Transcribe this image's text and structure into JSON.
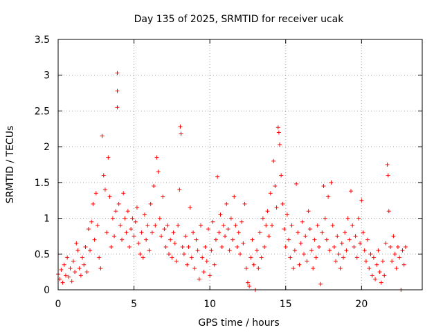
{
  "chart_data": {
    "type": "scatter",
    "title": "Day 135 of 2025, SRMTID for receiver ucak",
    "xlabel": "GPS time / hours",
    "ylabel": "SRMTID / TECUs",
    "xlim": [
      0,
      24
    ],
    "ylim": [
      0,
      3.5
    ],
    "xticks": [
      0,
      5,
      10,
      15,
      20
    ],
    "xtick_labels": [
      "0",
      "5",
      "10",
      "15",
      "20"
    ],
    "yticks": [
      0,
      0.5,
      1,
      1.5,
      2,
      2.5,
      3,
      3.5
    ],
    "ytick_labels": [
      "0",
      "0.5",
      "1",
      "1.5",
      "2",
      "2.5",
      "3",
      "3.5"
    ],
    "grid": true,
    "marker": "plus",
    "color": "#ff0000",
    "series": [
      {
        "name": "SRMTID",
        "points": [
          [
            0.0,
            0.22
          ],
          [
            0.1,
            0.15
          ],
          [
            0.2,
            0.28
          ],
          [
            0.3,
            0.1
          ],
          [
            0.4,
            0.35
          ],
          [
            0.5,
            0.2
          ],
          [
            0.6,
            0.45
          ],
          [
            0.7,
            0.18
          ],
          [
            0.8,
            0.3
          ],
          [
            0.9,
            0.12
          ],
          [
            1.0,
            0.4
          ],
          [
            1.1,
            0.25
          ],
          [
            1.2,
            0.65
          ],
          [
            1.3,
            0.55
          ],
          [
            1.4,
            0.3
          ],
          [
            1.5,
            0.2
          ],
          [
            1.6,
            0.45
          ],
          [
            1.7,
            0.35
          ],
          [
            1.8,
            0.6
          ],
          [
            1.9,
            0.25
          ],
          [
            2.0,
            0.85
          ],
          [
            2.1,
            0.55
          ],
          [
            2.2,
            0.95
          ],
          [
            2.3,
            1.2
          ],
          [
            2.4,
            0.7
          ],
          [
            2.5,
            1.35
          ],
          [
            2.6,
            0.9
          ],
          [
            2.7,
            0.45
          ],
          [
            2.8,
            0.3
          ],
          [
            2.9,
            2.15
          ],
          [
            3.0,
            1.6
          ],
          [
            3.1,
            1.4
          ],
          [
            3.2,
            0.8
          ],
          [
            3.3,
            1.85
          ],
          [
            3.4,
            1.3
          ],
          [
            3.5,
            0.6
          ],
          [
            3.6,
            1.0
          ],
          [
            3.7,
            0.75
          ],
          [
            3.8,
            1.1
          ],
          [
            3.9,
            3.03
          ],
          [
            3.9,
            2.78
          ],
          [
            3.9,
            2.55
          ],
          [
            4.0,
            1.2
          ],
          [
            4.1,
            0.9
          ],
          [
            4.2,
            0.7
          ],
          [
            4.3,
            1.35
          ],
          [
            4.4,
            1.0
          ],
          [
            4.5,
            0.8
          ],
          [
            4.6,
            1.1
          ],
          [
            4.7,
            0.6
          ],
          [
            4.8,
            0.85
          ],
          [
            4.9,
            1.0
          ],
          [
            5.0,
            0.75
          ],
          [
            5.1,
            0.95
          ],
          [
            5.2,
            1.15
          ],
          [
            5.3,
            0.65
          ],
          [
            5.4,
            0.5
          ],
          [
            5.5,
            0.8
          ],
          [
            5.6,
            0.45
          ],
          [
            5.7,
            1.05
          ],
          [
            5.8,
            0.7
          ],
          [
            5.9,
            0.9
          ],
          [
            6.0,
            0.55
          ],
          [
            6.1,
            1.2
          ],
          [
            6.2,
            0.8
          ],
          [
            6.3,
            1.45
          ],
          [
            6.4,
            0.9
          ],
          [
            6.5,
            1.85
          ],
          [
            6.6,
            1.65
          ],
          [
            6.7,
            1.0
          ],
          [
            6.8,
            0.75
          ],
          [
            6.9,
            1.3
          ],
          [
            7.0,
            0.85
          ],
          [
            7.1,
            0.6
          ],
          [
            7.2,
            0.9
          ],
          [
            7.3,
            0.5
          ],
          [
            7.4,
            0.7
          ],
          [
            7.5,
            0.45
          ],
          [
            7.6,
            0.8
          ],
          [
            7.7,
            0.65
          ],
          [
            7.8,
            0.4
          ],
          [
            7.9,
            0.9
          ],
          [
            8.0,
            1.4
          ],
          [
            8.05,
            2.28
          ],
          [
            8.1,
            2.18
          ],
          [
            8.2,
            0.6
          ],
          [
            8.3,
            0.5
          ],
          [
            8.4,
            0.75
          ],
          [
            8.5,
            0.35
          ],
          [
            8.6,
            0.6
          ],
          [
            8.7,
            1.15
          ],
          [
            8.8,
            0.45
          ],
          [
            8.9,
            0.8
          ],
          [
            9.0,
            0.3
          ],
          [
            9.1,
            0.7
          ],
          [
            9.2,
            0.55
          ],
          [
            9.3,
            0.15
          ],
          [
            9.4,
            0.9
          ],
          [
            9.5,
            0.45
          ],
          [
            9.6,
            0.25
          ],
          [
            9.7,
            0.6
          ],
          [
            9.8,
            0.4
          ],
          [
            9.9,
            0.85
          ],
          [
            10.0,
            0.2
          ],
          [
            10.1,
            0.55
          ],
          [
            10.2,
            0.95
          ],
          [
            10.3,
            0.35
          ],
          [
            10.4,
            0.7
          ],
          [
            10.5,
            1.58
          ],
          [
            10.6,
            0.8
          ],
          [
            10.7,
            1.05
          ],
          [
            10.8,
            0.6
          ],
          [
            10.9,
            0.9
          ],
          [
            11.0,
            0.75
          ],
          [
            11.1,
            1.2
          ],
          [
            11.2,
            0.85
          ],
          [
            11.3,
            0.55
          ],
          [
            11.4,
            1.0
          ],
          [
            11.5,
            0.7
          ],
          [
            11.6,
            1.3
          ],
          [
            11.7,
            0.9
          ],
          [
            11.8,
            0.6
          ],
          [
            11.9,
            0.8
          ],
          [
            12.0,
            0.5
          ],
          [
            12.1,
            0.95
          ],
          [
            12.2,
            0.65
          ],
          [
            12.3,
            1.2
          ],
          [
            12.4,
            0.3
          ],
          [
            12.5,
            0.1
          ],
          [
            12.6,
            0.05
          ],
          [
            12.7,
            0.45
          ],
          [
            12.8,
            0.7
          ],
          [
            12.9,
            0.35
          ],
          [
            13.0,
            0.0
          ],
          [
            13.1,
            0.55
          ],
          [
            13.2,
            0.3
          ],
          [
            13.3,
            0.8
          ],
          [
            13.4,
            0.45
          ],
          [
            13.5,
            1.0
          ],
          [
            13.6,
            0.6
          ],
          [
            13.7,
            0.9
          ],
          [
            13.8,
            1.1
          ],
          [
            13.9,
            0.75
          ],
          [
            14.0,
            1.35
          ],
          [
            14.1,
            0.9
          ],
          [
            14.2,
            1.8
          ],
          [
            14.3,
            1.45
          ],
          [
            14.4,
            1.15
          ],
          [
            14.5,
            2.27
          ],
          [
            14.55,
            2.2
          ],
          [
            14.6,
            2.03
          ],
          [
            14.7,
            1.6
          ],
          [
            14.8,
            1.2
          ],
          [
            14.9,
            0.85
          ],
          [
            15.0,
            0.6
          ],
          [
            15.1,
            1.05
          ],
          [
            15.2,
            0.7
          ],
          [
            15.3,
            0.45
          ],
          [
            15.4,
            0.9
          ],
          [
            15.5,
            0.3
          ],
          [
            15.6,
            0.55
          ],
          [
            15.7,
            1.48
          ],
          [
            15.8,
            0.8
          ],
          [
            15.9,
            0.35
          ],
          [
            16.0,
            0.65
          ],
          [
            16.1,
            0.95
          ],
          [
            16.2,
            0.5
          ],
          [
            16.3,
            0.75
          ],
          [
            16.4,
            0.4
          ],
          [
            16.5,
            1.1
          ],
          [
            16.6,
            0.85
          ],
          [
            16.7,
            0.55
          ],
          [
            16.8,
            0.3
          ],
          [
            16.9,
            0.7
          ],
          [
            17.0,
            0.45
          ],
          [
            17.1,
            0.9
          ],
          [
            17.2,
            0.6
          ],
          [
            17.3,
            0.08
          ],
          [
            17.4,
            0.8
          ],
          [
            17.5,
            1.45
          ],
          [
            17.6,
            1.0
          ],
          [
            17.7,
            0.7
          ],
          [
            17.8,
            1.3
          ],
          [
            17.9,
            0.55
          ],
          [
            18.0,
            1.5
          ],
          [
            18.1,
            0.9
          ],
          [
            18.2,
            0.6
          ],
          [
            18.3,
            0.4
          ],
          [
            18.4,
            0.75
          ],
          [
            18.5,
            0.5
          ],
          [
            18.6,
            0.3
          ],
          [
            18.7,
            0.65
          ],
          [
            18.8,
            0.45
          ],
          [
            18.9,
            0.8
          ],
          [
            19.0,
            0.55
          ],
          [
            19.1,
            1.0
          ],
          [
            19.2,
            0.7
          ],
          [
            19.3,
            1.38
          ],
          [
            19.4,
            0.9
          ],
          [
            19.5,
            0.6
          ],
          [
            19.6,
            0.75
          ],
          [
            19.7,
            0.45
          ],
          [
            19.8,
            1.0
          ],
          [
            19.9,
            0.65
          ],
          [
            20.0,
            1.25
          ],
          [
            20.1,
            0.8
          ],
          [
            20.2,
            0.55
          ],
          [
            20.3,
            0.4
          ],
          [
            20.4,
            0.7
          ],
          [
            20.5,
            0.3
          ],
          [
            20.6,
            0.5
          ],
          [
            20.7,
            0.2
          ],
          [
            20.8,
            0.45
          ],
          [
            20.9,
            0.15
          ],
          [
            21.0,
            0.35
          ],
          [
            21.1,
            0.55
          ],
          [
            21.2,
            0.25
          ],
          [
            21.3,
            0.1
          ],
          [
            21.4,
            0.4
          ],
          [
            21.5,
            0.2
          ],
          [
            21.6,
            0.65
          ],
          [
            21.7,
            1.75
          ],
          [
            21.75,
            1.6
          ],
          [
            21.8,
            1.1
          ],
          [
            21.9,
            0.6
          ],
          [
            22.0,
            0.4
          ],
          [
            22.1,
            0.75
          ],
          [
            22.2,
            0.5
          ],
          [
            22.3,
            0.3
          ],
          [
            22.4,
            0.6
          ],
          [
            22.5,
            0.45
          ],
          [
            22.6,
            0.0
          ],
          [
            22.7,
            0.55
          ],
          [
            22.8,
            0.35
          ],
          [
            22.9,
            0.6
          ]
        ]
      }
    ]
  }
}
